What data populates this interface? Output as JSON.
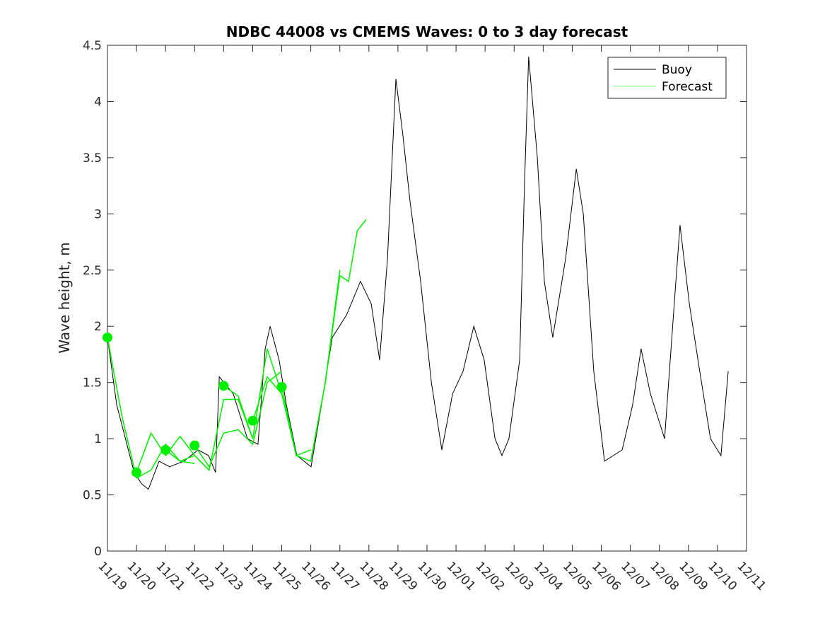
{
  "chart_data": {
    "type": "line",
    "title": "NDBC 44008 vs CMEMS Waves: 0 to 3 day forecast",
    "xlabel": "",
    "ylabel": "Wave height, m",
    "ylim": [
      0,
      4.5
    ],
    "xlim_days": [
      0,
      22
    ],
    "yticks": [
      "0",
      "0.5",
      "1",
      "1.5",
      "2",
      "2.5",
      "3",
      "3.5",
      "4",
      "4.5"
    ],
    "xtick_labels": [
      "11/19",
      "11/20",
      "11/21",
      "11/22",
      "11/23",
      "11/24",
      "11/25",
      "11/26",
      "11/27",
      "11/28",
      "11/29",
      "11/30",
      "12/01",
      "12/02",
      "12/03",
      "12/04",
      "12/05",
      "12/06",
      "12/07",
      "12/08",
      "12/09",
      "12/10",
      "12/11"
    ],
    "legend": {
      "placement": "top-right",
      "entries": [
        "Buoy",
        "Forecast"
      ]
    },
    "colors": {
      "buoy": "#000000",
      "forecast": "#00ee00"
    },
    "buoy": {
      "x_days": [
        0,
        0.32,
        0.92,
        1.17,
        1.41,
        1.78,
        2.14,
        2.63,
        3.12,
        3.48,
        3.72,
        3.85,
        4.33,
        4.82,
        5.18,
        5.43,
        5.6,
        5.91,
        6.16,
        6.52,
        7.01,
        7.37,
        7.74,
        8.23,
        8.71,
        9.08,
        9.37,
        9.64,
        9.93,
        10.17,
        10.42,
        10.78,
        11.15,
        11.51,
        11.88,
        12.24,
        12.61,
        12.97,
        13.34,
        13.58,
        13.82,
        14.19,
        14.36,
        14.5,
        14.8,
        15.04,
        15.33,
        15.77,
        16.14,
        16.38,
        16.74,
        17.11,
        17.72,
        18.08,
        18.37,
        18.69,
        19.18,
        19.54,
        19.71,
        20.03,
        20.39,
        20.76,
        21.12,
        21.37
      ],
      "values": [
        1.9,
        1.3,
        0.7,
        0.6,
        0.55,
        0.8,
        0.75,
        0.8,
        0.9,
        0.85,
        0.7,
        1.55,
        1.4,
        1.0,
        0.95,
        1.8,
        2.0,
        1.7,
        1.3,
        0.85,
        0.75,
        1.3,
        1.9,
        2.1,
        2.4,
        2.2,
        1.7,
        2.6,
        4.2,
        3.7,
        3.1,
        2.4,
        1.5,
        0.9,
        1.4,
        1.6,
        2.0,
        1.7,
        1.0,
        0.85,
        1.0,
        1.7,
        3.3,
        4.4,
        3.5,
        2.4,
        1.9,
        2.6,
        3.4,
        3.0,
        1.6,
        0.8,
        0.9,
        1.3,
        1.8,
        1.4,
        1.0,
        2.3,
        2.9,
        2.2,
        1.6,
        1.0,
        0.85,
        1.6
      ]
    },
    "forecast_series": [
      {
        "x_days": [
          0,
          0.5,
          1,
          1.5,
          2,
          2.5,
          3
        ],
        "values": [
          1.9,
          1.2,
          0.65,
          0.72,
          0.95,
          0.8,
          0.78
        ]
      },
      {
        "x_days": [
          1,
          1.5,
          2,
          2.5,
          3,
          3.5
        ],
        "values": [
          0.7,
          1.05,
          0.85,
          1.02,
          0.85,
          0.72
        ]
      },
      {
        "x_days": [
          2,
          2.5,
          3,
          3.5,
          4,
          4.5,
          5
        ],
        "values": [
          0.9,
          0.8,
          0.85,
          0.72,
          1.35,
          1.35,
          1.0
        ]
      },
      {
        "x_days": [
          3,
          3.5,
          4,
          4.5,
          5,
          5.5,
          6
        ],
        "values": [
          0.94,
          0.75,
          1.05,
          1.08,
          0.95,
          1.5,
          1.6
        ]
      },
      {
        "x_days": [
          4,
          4.5,
          5,
          5.5,
          6,
          6.5,
          7
        ],
        "values": [
          1.47,
          1.38,
          1.0,
          1.8,
          1.4,
          0.85,
          0.9
        ]
      },
      {
        "x_days": [
          5,
          5.5,
          6,
          6.5,
          7,
          7.5,
          8
        ],
        "values": [
          1.16,
          1.55,
          1.4,
          0.85,
          0.8,
          1.5,
          2.5
        ]
      },
      {
        "x_days": [
          6,
          6.5,
          7,
          7.5,
          8,
          8.3,
          8.6,
          8.9
        ],
        "values": [
          1.46,
          0.85,
          0.8,
          1.5,
          2.45,
          2.4,
          2.85,
          2.95
        ]
      }
    ],
    "forecast_init_points": {
      "x_days": [
        0,
        1,
        2,
        3,
        4,
        5,
        6
      ],
      "values": [
        1.9,
        0.7,
        0.9,
        0.94,
        1.47,
        1.16,
        1.46
      ]
    }
  }
}
